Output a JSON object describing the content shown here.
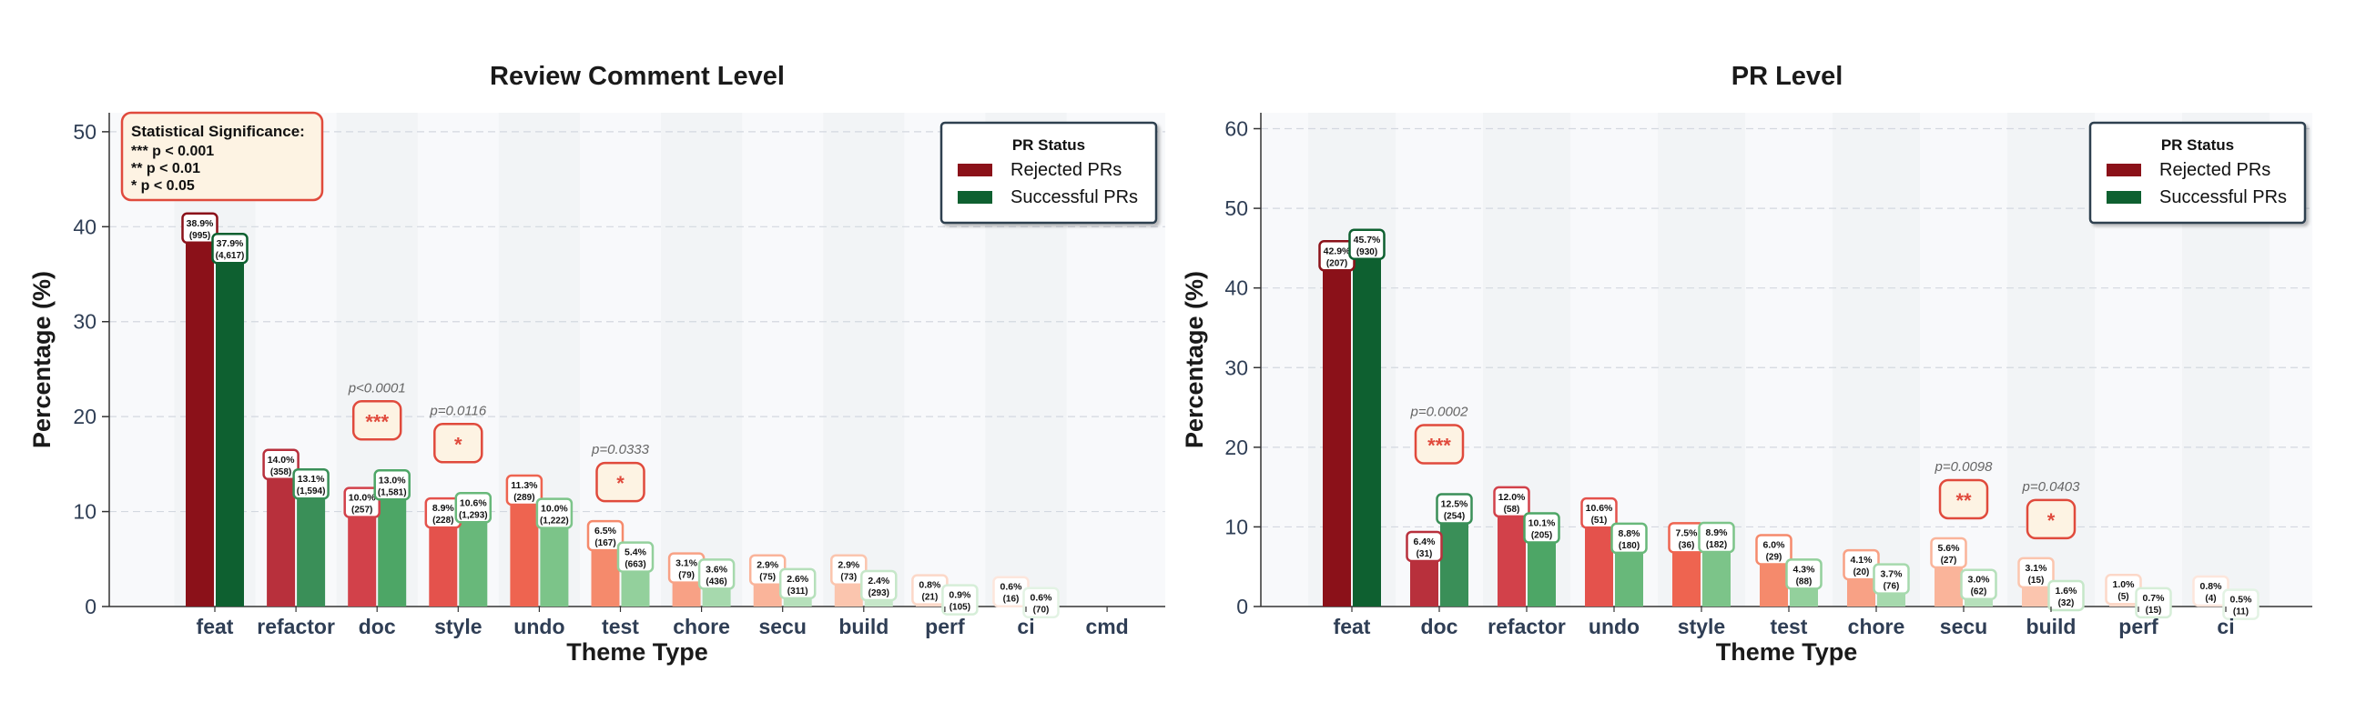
{
  "colors": {
    "rejected": [
      "#8b1119",
      "#b8303c",
      "#d2414a",
      "#e4524c",
      "#ee6450",
      "#f58a6c",
      "#f8a185",
      "#fab49a",
      "#fbc5ae",
      "#fcd8c8",
      "#fde6dc",
      "#fef0ea"
    ],
    "successful": [
      "#0e6030",
      "#3a8f58",
      "#4da666",
      "#68b87a",
      "#7cc489",
      "#93d09c",
      "#a6d9ad",
      "#b6e0bb",
      "#c6e7c9",
      "#d6eed8",
      "#e3f3e4",
      "#eff8ef"
    ],
    "annotation_red": "#e04a3c",
    "frame_dark": "#2f4050"
  },
  "legend": {
    "title": "PR Status",
    "rejected": "Rejected PRs",
    "successful": "Successful PRs"
  },
  "significance_box": {
    "title": "Statistical Significance:",
    "lines": [
      "*** p < 0.001",
      "** p < 0.01",
      "* p < 0.05"
    ]
  },
  "chart_data": [
    {
      "type": "bar",
      "title": "Review Comment Level",
      "xlabel": "Theme Type",
      "ylabel": "Percentage (%)",
      "ylim": [
        0,
        52
      ],
      "yticks": [
        0,
        10,
        20,
        30,
        40,
        50
      ],
      "grid": true,
      "legend_position": "top-right",
      "categories": [
        "feat",
        "refactor",
        "doc",
        "style",
        "undo",
        "test",
        "chore",
        "secu",
        "build",
        "perf",
        "ci",
        "cmd"
      ],
      "series": [
        {
          "name": "Rejected PRs",
          "values": [
            38.9,
            14.0,
            10.0,
            8.9,
            11.3,
            6.5,
            3.1,
            2.9,
            2.9,
            0.8,
            0.6,
            0.0
          ],
          "labels": [
            "38.9%",
            "14.0%",
            "10.0%",
            "8.9%",
            "11.3%",
            "6.5%",
            "3.1%",
            "2.9%",
            "2.9%",
            "0.8%",
            "0.6%",
            ""
          ],
          "counts": [
            "(995)",
            "(358)",
            "(257)",
            "(228)",
            "(289)",
            "(167)",
            "(79)",
            "(75)",
            "(73)",
            "(21)",
            "(16)",
            ""
          ]
        },
        {
          "name": "Successful PRs",
          "values": [
            37.9,
            13.1,
            13.0,
            10.6,
            10.0,
            5.4,
            3.6,
            2.6,
            2.4,
            0.9,
            0.6,
            0.0
          ],
          "labels": [
            "37.9%",
            "13.1%",
            "13.0%",
            "10.6%",
            "10.0%",
            "5.4%",
            "3.6%",
            "2.6%",
            "2.4%",
            "0.9%",
            "0.6%",
            ""
          ],
          "counts": [
            "(4,617)",
            "(1,594)",
            "(1,581)",
            "(1,293)",
            "(1,222)",
            "(663)",
            "(436)",
            "(311)",
            "(293)",
            "(105)",
            "(70)",
            ""
          ]
        }
      ],
      "significance": [
        {
          "category": "doc",
          "p": "p<0.0001",
          "stars": "***"
        },
        {
          "category": "style",
          "p": "p=0.0116",
          "stars": "*"
        },
        {
          "category": "test",
          "p": "p=0.0333",
          "stars": "*"
        }
      ]
    },
    {
      "type": "bar",
      "title": "PR Level",
      "xlabel": "Theme Type",
      "ylabel": "Percentage (%)",
      "ylim": [
        0,
        62
      ],
      "yticks": [
        0,
        10,
        20,
        30,
        40,
        50,
        60
      ],
      "grid": true,
      "legend_position": "top-right",
      "categories": [
        "feat",
        "doc",
        "refactor",
        "undo",
        "style",
        "test",
        "chore",
        "secu",
        "build",
        "perf",
        "ci"
      ],
      "series": [
        {
          "name": "Rejected PRs",
          "values": [
            42.9,
            6.4,
            12.0,
            10.6,
            7.5,
            6.0,
            4.1,
            5.6,
            3.1,
            1.0,
            0.8
          ],
          "labels": [
            "42.9%",
            "6.4%",
            "12.0%",
            "10.6%",
            "7.5%",
            "6.0%",
            "4.1%",
            "5.6%",
            "3.1%",
            "1.0%",
            "0.8%"
          ],
          "counts": [
            "(207)",
            "(31)",
            "(58)",
            "(51)",
            "(36)",
            "(29)",
            "(20)",
            "(27)",
            "(15)",
            "(5)",
            "(4)"
          ]
        },
        {
          "name": "Successful PRs",
          "values": [
            45.7,
            12.5,
            10.1,
            8.8,
            8.9,
            4.3,
            3.7,
            3.0,
            1.6,
            0.7,
            0.5
          ],
          "labels": [
            "45.7%",
            "12.5%",
            "10.1%",
            "8.8%",
            "8.9%",
            "4.3%",
            "3.7%",
            "3.0%",
            "1.6%",
            "0.7%",
            "0.5%"
          ],
          "counts": [
            "(930)",
            "(254)",
            "(205)",
            "(180)",
            "(182)",
            "(88)",
            "(76)",
            "(62)",
            "(32)",
            "(15)",
            "(11)"
          ]
        }
      ],
      "significance": [
        {
          "category": "doc",
          "p": "p=0.0002",
          "stars": "***"
        },
        {
          "category": "secu",
          "p": "p=0.0098",
          "stars": "**"
        },
        {
          "category": "build",
          "p": "p=0.0403",
          "stars": "*"
        }
      ]
    }
  ]
}
